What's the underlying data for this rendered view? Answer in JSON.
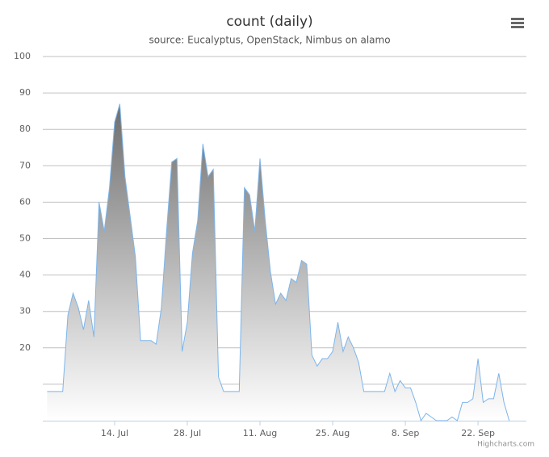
{
  "chart_data": {
    "type": "area",
    "title": "count (daily)",
    "subtitle": "source: Eucalyptus, OpenStack, Nimbus on alamo",
    "credits": "Highcharts.com",
    "color": "#7cb5ec",
    "grid": true,
    "ylim": [
      0,
      100
    ],
    "yticks": [
      20,
      30,
      40,
      50,
      60,
      70,
      80,
      90,
      100
    ],
    "unlabeled_yticks": [
      10
    ],
    "x": [
      "1. Jul",
      "2. Jul",
      "3. Jul",
      "4. Jul",
      "5. Jul",
      "6. Jul",
      "7. Jul",
      "8. Jul",
      "9. Jul",
      "10. Jul",
      "11. Jul",
      "12. Jul",
      "13. Jul",
      "14. Jul",
      "15. Jul",
      "16. Jul",
      "17. Jul",
      "18. Jul",
      "19. Jul",
      "20. Jul",
      "21. Jul",
      "22. Jul",
      "23. Jul",
      "24. Jul",
      "25. Jul",
      "26. Jul",
      "27. Jul",
      "28. Jul",
      "29. Jul",
      "30. Jul",
      "31. Jul",
      "1. Aug",
      "2. Aug",
      "3. Aug",
      "4. Aug",
      "5. Aug",
      "6. Aug",
      "7. Aug",
      "8. Aug",
      "9. Aug",
      "10. Aug",
      "11. Aug",
      "12. Aug",
      "13. Aug",
      "14. Aug",
      "15. Aug",
      "16. Aug",
      "17. Aug",
      "18. Aug",
      "19. Aug",
      "20. Aug",
      "21. Aug",
      "22. Aug",
      "23. Aug",
      "24. Aug",
      "25. Aug",
      "26. Aug",
      "27. Aug",
      "28. Aug",
      "29. Aug",
      "30. Aug",
      "31. Aug",
      "1. Sep",
      "2. Sep",
      "3. Sep",
      "4. Sep",
      "5. Sep",
      "6. Sep",
      "7. Sep",
      "8. Sep",
      "9. Sep",
      "10. Sep",
      "11. Sep",
      "12. Sep",
      "13. Sep",
      "14. Sep",
      "15. Sep",
      "16. Sep",
      "17. Sep",
      "18. Sep",
      "19. Sep",
      "20. Sep",
      "21. Sep",
      "22. Sep",
      "23. Sep",
      "24. Sep",
      "25. Sep",
      "26. Sep",
      "27. Sep",
      "28. Sep"
    ],
    "xticks": [
      "14. Jul",
      "28. Jul",
      "11. Aug",
      "25. Aug",
      "8. Sep",
      "22. Sep"
    ],
    "values": [
      8,
      8,
      8,
      8,
      29,
      35,
      31,
      25,
      33,
      23,
      60,
      52,
      64,
      82,
      87,
      67,
      56,
      45,
      22,
      22,
      22,
      21,
      31,
      52,
      71,
      72,
      19,
      27,
      46,
      55,
      76,
      67,
      69,
      12,
      8,
      8,
      8,
      8,
      64,
      62,
      52,
      72,
      55,
      41,
      32,
      35,
      33,
      39,
      38,
      44,
      43,
      18,
      15,
      17,
      17,
      19,
      27,
      19,
      23,
      20,
      16,
      8,
      8,
      8,
      8,
      8,
      13,
      8,
      11,
      9,
      9,
      5,
      0,
      2,
      1,
      0,
      0,
      0,
      1,
      0,
      5,
      5,
      6,
      17,
      5,
      6,
      6,
      13,
      5,
      0
    ]
  }
}
